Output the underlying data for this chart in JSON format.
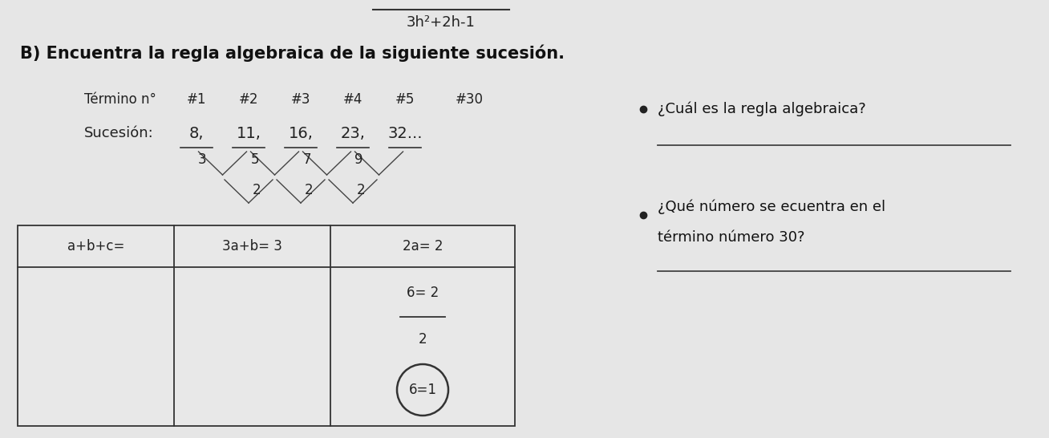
{
  "background_color": "#d4d4d4",
  "paper_color": "#e6e6e6",
  "title_handwritten": "3h2+2h-1",
  "title_printed": "B) Encuentra la regla algebraica de la siguiente sucesión.",
  "row1_label": "Término n°",
  "row1_values": [
    "#1",
    "#2",
    "#3",
    "#4",
    "#5",
    "#30"
  ],
  "row2_label": "Sucesión:",
  "row2_values": [
    "8,",
    "11,",
    "16,",
    "23,",
    "32..."
  ],
  "differences1": [
    "3",
    "5",
    "7",
    "9"
  ],
  "differences2": [
    "2",
    "2",
    "2"
  ],
  "table_col1_header": "a+b+c=",
  "table_col2_header": "3a+b= 3",
  "table_col3_header": "2a= 2",
  "table_col3_line2": "6= 2",
  "table_col3_frac": "2",
  "table_col3_circled": "6=1",
  "bullet1_text": "¿Cuál es la regla algebraica?",
  "bullet2_line1": "¿Qué número se ecuentra en el",
  "bullet2_line2": "término número 30?",
  "font_size_title": 15,
  "font_size_body": 13,
  "font_size_small": 11
}
